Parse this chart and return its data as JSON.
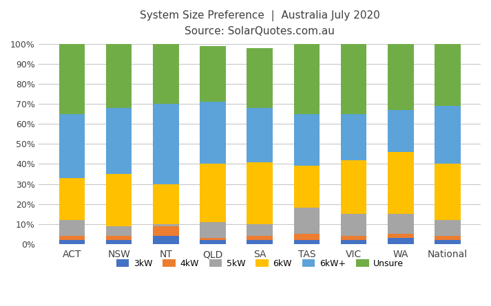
{
  "categories": [
    "ACT",
    "NSW",
    "NT",
    "QLD",
    "SA",
    "TAS",
    "VIC",
    "WA",
    "National"
  ],
  "series": {
    "3kW": [
      2,
      2,
      4,
      2,
      2,
      2,
      2,
      3,
      2
    ],
    "4kW": [
      2,
      2,
      5,
      1,
      2,
      3,
      2,
      2,
      2
    ],
    "5kW": [
      8,
      5,
      1,
      8,
      6,
      13,
      11,
      10,
      8
    ],
    "6kW": [
      21,
      26,
      20,
      29,
      31,
      21,
      27,
      31,
      28
    ],
    "6kW+": [
      32,
      33,
      40,
      31,
      27,
      26,
      23,
      21,
      29
    ],
    "Unsure": [
      35,
      32,
      30,
      28,
      30,
      35,
      35,
      33,
      31
    ]
  },
  "colors": {
    "3kW": "#4472C4",
    "4kW": "#ED7D31",
    "5kW": "#A5A5A5",
    "6kW": "#FFC000",
    "6kW+": "#5BA3D9",
    "Unsure": "#70AD47"
  },
  "title_line1": "System Size Preference  |  Australia July 2020",
  "title_line2": "Source: SolarQuotes.com.au",
  "background_color": "#FFFFFF",
  "bar_width": 0.55,
  "ylim": [
    0,
    100
  ],
  "ytick_labels": [
    "0%",
    "10%",
    "20%",
    "30%",
    "40%",
    "50%",
    "60%",
    "70%",
    "80%",
    "90%",
    "100%"
  ],
  "ytick_values": [
    0,
    10,
    20,
    30,
    40,
    50,
    60,
    70,
    80,
    90,
    100
  ],
  "legend_order": [
    "3kW",
    "4kW",
    "5kW",
    "6kW",
    "6kW+",
    "Unsure"
  ]
}
